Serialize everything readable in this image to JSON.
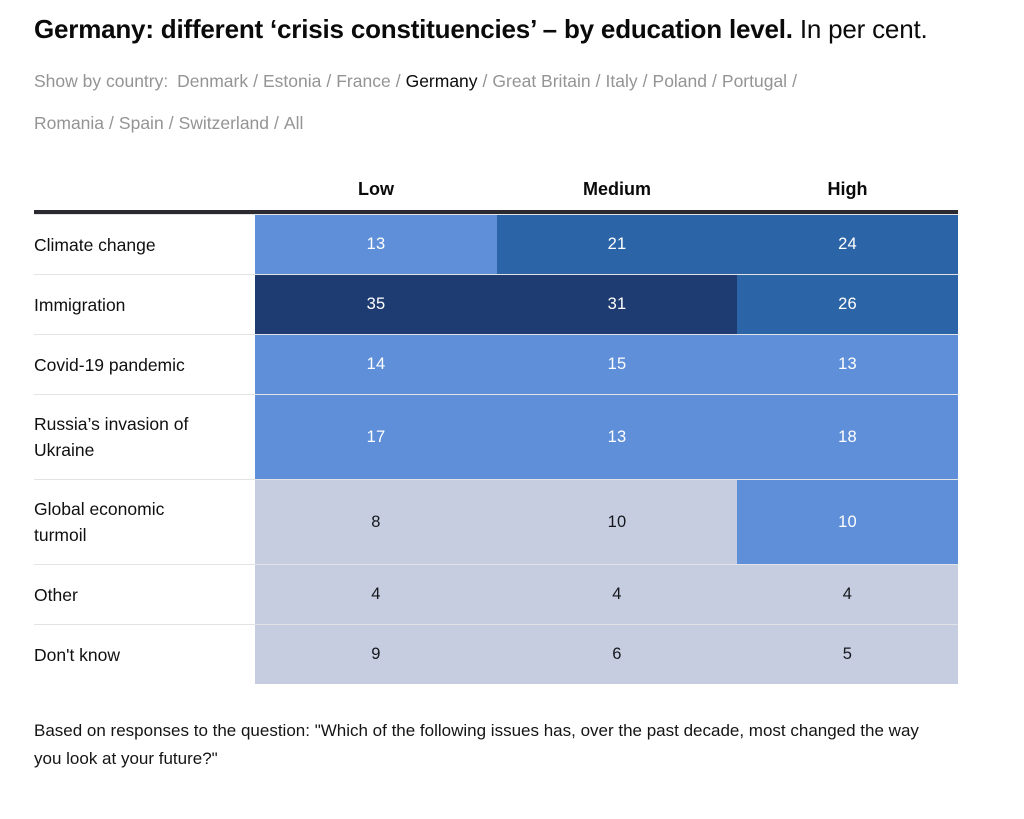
{
  "title": {
    "bold": "Germany: different ‘crisis constituencies’ – by education level.",
    "regular": " In per cent."
  },
  "country_nav": {
    "prefix": "Show by country:",
    "separator": "/",
    "items": [
      {
        "label": "Denmark"
      },
      {
        "label": "Estonia"
      },
      {
        "label": "France"
      },
      {
        "label": "Germany",
        "state": "selected"
      },
      {
        "label": "Great Britain"
      },
      {
        "label": "Italy"
      },
      {
        "label": "Poland"
      },
      {
        "label": "Portugal"
      },
      {
        "label": "Romania"
      },
      {
        "label": "Spain"
      },
      {
        "label": "Switzerland"
      },
      {
        "label": "All"
      }
    ]
  },
  "chart_data": {
    "type": "heatmap",
    "title": "Germany: different ‘crisis constituencies’ – by education level. In per cent.",
    "unit": "per cent",
    "columns": [
      "Low",
      "Medium",
      "High"
    ],
    "rows": [
      "Climate change",
      "Immigration",
      "Covid-19 pandemic",
      "Russia’s invasion of Ukraine",
      "Global economic turmoil",
      "Other",
      "Don't know"
    ],
    "values": [
      [
        13,
        21,
        24
      ],
      [
        35,
        31,
        26
      ],
      [
        14,
        15,
        13
      ],
      [
        17,
        13,
        18
      ],
      [
        8,
        10,
        10
      ],
      [
        4,
        4,
        4
      ],
      [
        9,
        6,
        5
      ]
    ],
    "color_scale": {
      "darkest": "#1e3c72",
      "dark": "#2c65a7",
      "medium": "#5e8fd8",
      "light": "#c6cde0"
    },
    "legend_position": "none",
    "grid": false
  },
  "table": {
    "columns": [
      "Low",
      "Medium",
      "High"
    ],
    "rows": [
      {
        "label": "Climate change",
        "cells": [
          {
            "value": "13",
            "tier": "medium"
          },
          {
            "value": "21",
            "tier": "dark"
          },
          {
            "value": "24",
            "tier": "dark"
          }
        ]
      },
      {
        "label": "Immigration",
        "cells": [
          {
            "value": "35",
            "tier": "darkest"
          },
          {
            "value": "31",
            "tier": "darkest"
          },
          {
            "value": "26",
            "tier": "dark"
          }
        ]
      },
      {
        "label": "Covid-19 pandemic",
        "cells": [
          {
            "value": "14",
            "tier": "medium"
          },
          {
            "value": "15",
            "tier": "medium"
          },
          {
            "value": "13",
            "tier": "medium"
          }
        ]
      },
      {
        "label": "Russia’s invasion of Ukraine",
        "cells": [
          {
            "value": "17",
            "tier": "medium"
          },
          {
            "value": "13",
            "tier": "medium"
          },
          {
            "value": "18",
            "tier": "medium"
          }
        ]
      },
      {
        "label": "Global economic turmoil",
        "cells": [
          {
            "value": "8",
            "tier": "light"
          },
          {
            "value": "10",
            "tier": "light"
          },
          {
            "value": "10",
            "tier": "medium"
          }
        ]
      },
      {
        "label": "Other",
        "cells": [
          {
            "value": "4",
            "tier": "light"
          },
          {
            "value": "4",
            "tier": "light"
          },
          {
            "value": "4",
            "tier": "light"
          }
        ]
      },
      {
        "label": "Don't know",
        "cells": [
          {
            "value": "9",
            "tier": "light"
          },
          {
            "value": "6",
            "tier": "light"
          },
          {
            "value": "5",
            "tier": "light"
          }
        ]
      }
    ]
  },
  "footnote": "Based on responses to the question: \"Which of the following issues has, over the past decade, most changed the way you look at your future?\""
}
